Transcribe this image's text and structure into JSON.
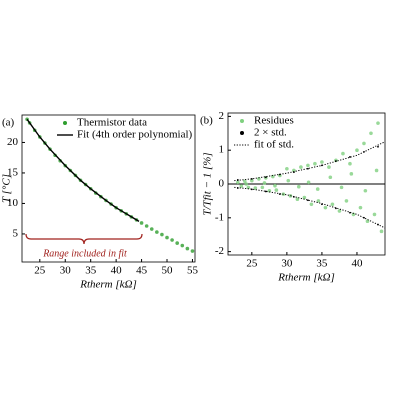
{
  "chart_data": [
    {
      "type": "scatter",
      "panel_label": "(a)",
      "xlabel": "Rtherm [kΩ]",
      "ylabel": "T [°C]",
      "xlim": [
        21.5,
        55.5
      ],
      "ylim": [
        0.4,
        24.5
      ],
      "xticks": [
        25,
        30,
        35,
        40,
        45,
        50,
        55
      ],
      "yticks": [
        5,
        10,
        15,
        20
      ],
      "legend": "upper right",
      "annotation": "Range included in fit",
      "series": [
        {
          "name": "Thermistor data",
          "color": "#2e9e2e",
          "mode": "markers",
          "x": [
            22.5,
            23,
            24,
            25,
            26,
            27,
            28,
            29,
            30,
            31,
            32,
            33,
            34,
            35,
            36,
            37,
            38,
            39,
            40,
            41,
            42,
            43,
            44,
            45,
            46,
            47,
            48,
            49,
            50,
            51,
            52,
            53,
            54,
            55
          ],
          "values": [
            23.8,
            23.2,
            22.0,
            20.9,
            19.9,
            18.9,
            17.9,
            17.0,
            16.2,
            15.4,
            14.6,
            13.8,
            13.1,
            12.4,
            11.7,
            11.1,
            10.5,
            9.9,
            9.3,
            8.8,
            8.3,
            7.8,
            7.3,
            6.8,
            6.3,
            5.8,
            5.3,
            4.9,
            4.4,
            4.0,
            3.5,
            3.1,
            2.6,
            2.2
          ]
        },
        {
          "name": "Fit (4th order polynomial)",
          "color": "#000000",
          "mode": "line",
          "x": [
            22.5,
            25,
            27,
            30,
            33,
            35,
            38,
            40,
            42,
            44.5
          ],
          "values": [
            23.8,
            20.9,
            18.9,
            16.2,
            13.8,
            12.4,
            10.5,
            9.3,
            8.3,
            7.05
          ]
        }
      ]
    },
    {
      "type": "scatter",
      "panel_label": "(b)",
      "xlabel": "Rtherm [kΩ]",
      "ylabel": "T/Tfit − 1 [%]",
      "xlim": [
        21.6,
        44
      ],
      "ylim": [
        -2.1,
        2.1
      ],
      "xticks": [
        25,
        30,
        35,
        40
      ],
      "yticks": [
        -2,
        -1,
        0,
        1,
        2
      ],
      "hline": 0,
      "legend": "upper left",
      "series": [
        {
          "name": "Residues",
          "color": "#7fd07f",
          "mode": "markers",
          "x": [
            23,
            23.5,
            24,
            24.5,
            25,
            25.5,
            26,
            26.5,
            27,
            27.5,
            28,
            28.5,
            29,
            29.5,
            30,
            30.5,
            31,
            31.5,
            32,
            32.5,
            33,
            33.5,
            34,
            34.5,
            35,
            35.5,
            36,
            36.5,
            37,
            37.5,
            38,
            38.5,
            39,
            39.5,
            40,
            40.5,
            41,
            41.5,
            42,
            42.5,
            43,
            43.5,
            24.2,
            26.8,
            28.3,
            30.2,
            31.7,
            33.1,
            34.4,
            36.2,
            37.8,
            39.2,
            41.2,
            42.8
          ],
          "values": [
            0.05,
            -0.06,
            0.08,
            -0.1,
            0.1,
            -0.12,
            0.15,
            -0.1,
            0.18,
            -0.2,
            0.22,
            -0.18,
            0.25,
            -0.3,
            0.45,
            -0.35,
            0.4,
            -0.45,
            0.5,
            -0.4,
            0.55,
            -0.6,
            0.6,
            -0.5,
            0.65,
            -0.7,
            0.5,
            -0.6,
            0.7,
            -0.8,
            0.9,
            -0.5,
            0.6,
            -0.9,
            1.0,
            -0.7,
            1.2,
            -1.1,
            1.5,
            -0.9,
            1.8,
            -1.4,
            0.0,
            0.03,
            -0.05,
            0.1,
            -0.08,
            0.05,
            -0.15,
            0.2,
            -0.1,
            0.3,
            -0.2,
            0.4
          ]
        },
        {
          "name": "2 × std.",
          "color": "#000000",
          "mode": "markers",
          "x": [
            23,
            25,
            27,
            29,
            31,
            33,
            35,
            37,
            39,
            41,
            43,
            23,
            25,
            27,
            29,
            31,
            33,
            35,
            37,
            39,
            41,
            43
          ],
          "values": [
            0.12,
            0.15,
            0.2,
            0.28,
            0.35,
            0.45,
            0.55,
            0.68,
            0.8,
            0.95,
            1.1,
            -0.12,
            -0.16,
            -0.22,
            -0.3,
            -0.38,
            -0.48,
            -0.6,
            -0.72,
            -0.85,
            -1.0,
            -1.2
          ]
        },
        {
          "name": "fit of std.",
          "color": "#000000",
          "mode": "dotted",
          "x": [
            22.5,
            25,
            30,
            35,
            40,
            44,
            null,
            22.5,
            25,
            30,
            35,
            40,
            44
          ],
          "values": [
            0.1,
            0.15,
            0.32,
            0.55,
            0.85,
            1.25,
            null,
            -0.1,
            -0.15,
            -0.32,
            -0.58,
            -0.9,
            -1.3
          ]
        }
      ]
    }
  ]
}
